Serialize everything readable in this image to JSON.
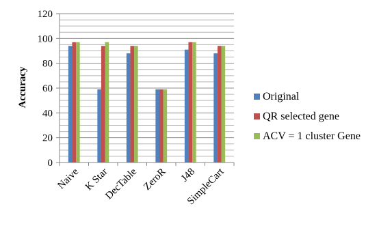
{
  "chart_data": {
    "type": "bar",
    "title": "",
    "xlabel": "",
    "ylabel": "Accuracy",
    "ylim": [
      0,
      120
    ],
    "yticks": [
      0,
      20,
      40,
      60,
      80,
      100,
      120
    ],
    "grid": true,
    "legend_position": "right",
    "categories": [
      "Naive",
      "K Star",
      "DecTable",
      "ZeroR",
      "J48",
      "SimpleCart"
    ],
    "series": [
      {
        "name": "Original",
        "color": "#4F81BD",
        "values": [
          94,
          59,
          88,
          59,
          91,
          88
        ]
      },
      {
        "name": "QR selected gene",
        "color": "#C0504D",
        "values": [
          97,
          94,
          94,
          59,
          97,
          94
        ]
      },
      {
        "name": "ACV = 1 cluster Gene",
        "color": "#9BBB59",
        "values": [
          97,
          97,
          94,
          59,
          97,
          94
        ]
      }
    ]
  }
}
